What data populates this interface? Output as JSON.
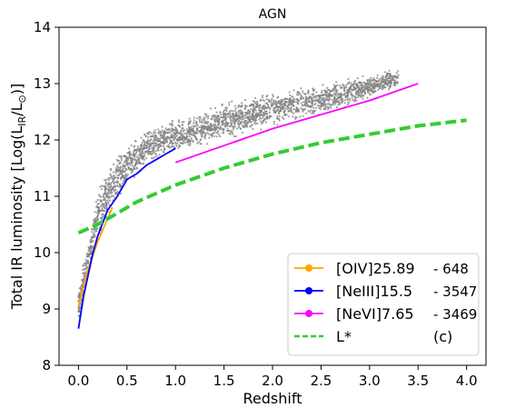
{
  "chart_data": {
    "type": "scatter",
    "title": "AGN",
    "xlabel": "Redshift",
    "ylabel": "Total IR luminosity [Log(L",
    "ylabel_sub": "IR",
    "ylabel_tail": "/L",
    "ylabel_sun": "⊙",
    "ylabel_end": ")]",
    "xlim": [
      -0.2,
      4.2
    ],
    "ylim": [
      8,
      14
    ],
    "xticks": [
      "0.0",
      "0.5",
      "1.0",
      "1.5",
      "2.0",
      "2.5",
      "3.0",
      "3.5",
      "4.0"
    ],
    "xtick_values": [
      0,
      0.5,
      1,
      1.5,
      2,
      2.5,
      3,
      3.5,
      4
    ],
    "yticks": [
      "8",
      "9",
      "10",
      "11",
      "12",
      "13",
      "14"
    ],
    "ytick_values": [
      8,
      9,
      10,
      11,
      12,
      13,
      14
    ],
    "grid": false,
    "legend_position": "lower-right",
    "scatter": {
      "color": "#808080",
      "bands": [
        {
          "x": [
            0.0,
            0.05,
            0.1,
            0.15,
            0.2,
            0.3,
            0.4,
            0.5,
            0.6,
            0.7,
            0.8,
            0.9,
            1.0,
            1.2,
            1.5,
            2.0,
            2.5,
            3.0,
            3.3
          ],
          "low": [
            8.7,
            9.0,
            9.4,
            9.8,
            10.1,
            10.5,
            10.8,
            11.1,
            11.3,
            11.5,
            11.6,
            11.7,
            11.7,
            11.8,
            11.95,
            12.2,
            12.4,
            12.7,
            12.9
          ],
          "high": [
            9.4,
            9.9,
            10.3,
            10.7,
            11.2,
            11.6,
            11.8,
            12.0,
            12.1,
            12.2,
            12.3,
            12.35,
            12.4,
            12.5,
            12.7,
            12.9,
            13.05,
            13.2,
            13.3
          ]
        }
      ]
    },
    "series": [
      {
        "name": "[OIV]25.89",
        "count": "648",
        "color": "#ffa500",
        "style": "solid",
        "x": [
          0.0,
          0.05,
          0.1,
          0.15,
          0.2,
          0.25,
          0.3,
          0.35
        ],
        "y": [
          9.05,
          9.4,
          9.7,
          9.95,
          10.2,
          10.4,
          10.6,
          10.8
        ]
      },
      {
        "name": "[NeIII]15.5",
        "count": "3547",
        "color": "#0000ff",
        "style": "solid",
        "x": [
          0.0,
          0.05,
          0.1,
          0.15,
          0.2,
          0.3,
          0.4,
          0.5,
          0.6,
          0.7,
          0.8,
          0.9,
          1.0
        ],
        "y": [
          8.65,
          9.2,
          9.6,
          10.0,
          10.3,
          10.75,
          11.0,
          11.3,
          11.4,
          11.55,
          11.65,
          11.75,
          11.85
        ]
      },
      {
        "name": "[NeVI]7.65",
        "count": "3469",
        "color": "#ff00ff",
        "style": "solid",
        "x": [
          1.0,
          1.5,
          2.0,
          2.5,
          3.0,
          3.5
        ],
        "y": [
          11.6,
          11.9,
          12.2,
          12.45,
          12.7,
          13.0
        ]
      },
      {
        "name": "L*",
        "label_suffix": "(c)",
        "color": "#33cc33",
        "style": "dashed",
        "x": [
          0.0,
          0.2,
          0.4,
          0.6,
          0.8,
          1.0,
          1.5,
          2.0,
          2.5,
          3.0,
          3.5,
          4.0
        ],
        "y": [
          10.35,
          10.5,
          10.7,
          10.9,
          11.05,
          11.2,
          11.5,
          11.75,
          11.95,
          12.1,
          12.25,
          12.35
        ]
      }
    ]
  }
}
